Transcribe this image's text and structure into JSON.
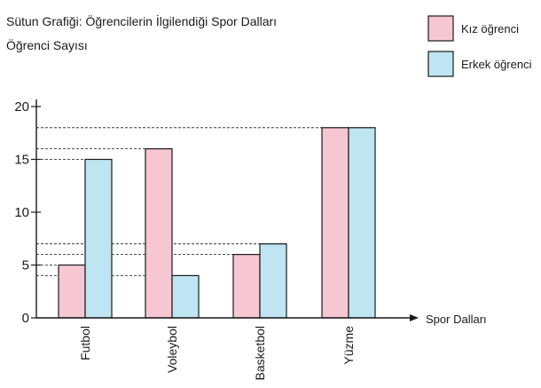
{
  "chart_data": {
    "type": "bar",
    "title": "Sütun Grafiği: Öğrencilerin İlgilendiği Spor Dalları",
    "ylabel": "Öğrenci Sayısı",
    "xlabel": "Spor Dalları",
    "categories": [
      "Futbol",
      "Voleybol",
      "Basketbol",
      "Yüzme"
    ],
    "series": [
      {
        "name": "Kız öğrenci",
        "values": [
          5,
          16,
          6,
          18
        ],
        "color": "#f7c6d3"
      },
      {
        "name": "Erkek öğrenci",
        "values": [
          15,
          4,
          7,
          18
        ],
        "color": "#bfe4f2"
      }
    ],
    "ylim": [
      0,
      20
    ],
    "yticks": [
      0,
      5,
      10,
      15,
      20
    ],
    "grid": false,
    "reference_lines": "dashed lines from y-axis to bar tops",
    "legend_position": "top-right"
  },
  "colors": {
    "axis": "#1a1a1a",
    "bar_outline": "#1a1a1a",
    "girl": "#f7c6d3",
    "boy": "#bfe4f2",
    "text": "#1a1a1a"
  }
}
